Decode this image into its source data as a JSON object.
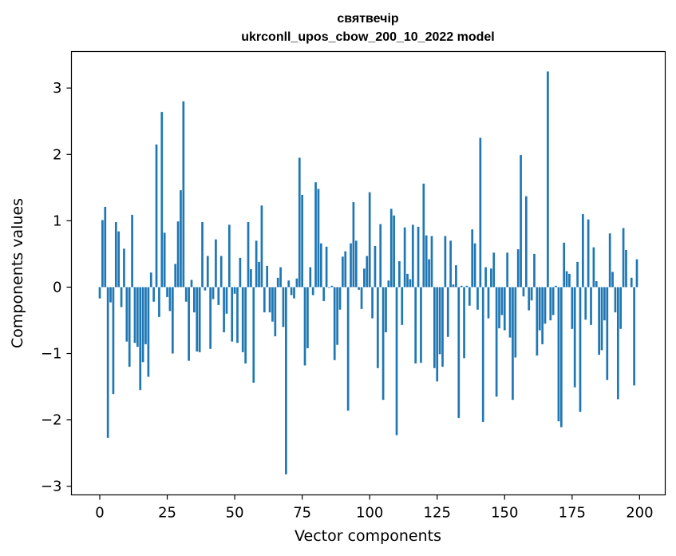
{
  "chart_data": {
    "type": "bar",
    "title": "святвечір",
    "subtitle": "ukrconll_upos_cbow_200_10_2022 model",
    "xlabel": "Vector components",
    "ylabel": "Components values",
    "xlim": [
      -10.5,
      209.5
    ],
    "ylim": [
      -3.13,
      3.55
    ],
    "xticks": [
      0,
      25,
      50,
      75,
      100,
      125,
      150,
      175,
      200
    ],
    "yticks": [
      -3,
      -2,
      -1,
      0,
      1,
      2,
      3
    ],
    "xtick_labels": [
      "0",
      "25",
      "50",
      "75",
      "100",
      "125",
      "150",
      "175",
      "200"
    ],
    "ytick_labels": [
      "−3",
      "−2",
      "−1",
      "0",
      "1",
      "2",
      "3"
    ],
    "grid": false,
    "color": "#1f77b4",
    "values": [
      -0.17,
      1.01,
      1.21,
      -2.27,
      -0.23,
      -1.61,
      0.98,
      0.84,
      -0.3,
      0.58,
      -0.82,
      -1.2,
      1.09,
      -0.84,
      -0.9,
      -1.55,
      -1.13,
      -0.86,
      -1.35,
      0.22,
      -0.22,
      2.15,
      -0.45,
      2.64,
      0.82,
      -0.15,
      -0.36,
      -1.0,
      0.35,
      0.99,
      1.46,
      2.8,
      -0.22,
      -1.11,
      0.11,
      -0.38,
      -0.97,
      -0.98,
      0.98,
      -0.05,
      0.47,
      -0.93,
      -0.18,
      0.72,
      -0.27,
      0.47,
      -0.68,
      -0.4,
      0.94,
      -0.82,
      -0.1,
      -0.84,
      0.44,
      -0.98,
      -1.15,
      0.98,
      0.27,
      -1.44,
      0.7,
      0.38,
      1.23,
      -0.38,
      0.32,
      -0.38,
      -0.52,
      -0.74,
      0.14,
      0.3,
      -0.6,
      -2.82,
      0.1,
      -0.12,
      -0.17,
      0.13,
      1.95,
      1.39,
      -1.18,
      -0.92,
      0.3,
      -0.12,
      1.58,
      1.48,
      0.66,
      -0.21,
      0.61,
      -0.01,
      0.02,
      -1.1,
      -0.87,
      -0.34,
      0.46,
      0.54,
      -1.86,
      0.66,
      1.28,
      0.7,
      -0.04,
      -0.33,
      0.28,
      0.47,
      1.43,
      -0.47,
      0.62,
      -1.22,
      0.95,
      -1.7,
      -0.68,
      0.1,
      1.18,
      1.08,
      -2.23,
      0.39,
      -0.57,
      0.9,
      0.2,
      0.12,
      0.94,
      -1.15,
      0.91,
      -1.14,
      1.56,
      0.78,
      0.42,
      0.77,
      -1.22,
      -1.42,
      -1.01,
      -1.2,
      0.77,
      -0.75,
      0.7,
      0.04,
      0.33,
      -1.97,
      0.02,
      -1.07,
      0.02,
      -0.28,
      0.87,
      0.66,
      -0.34,
      2.25,
      -2.03,
      0.3,
      -0.47,
      0.28,
      0.52,
      -1.65,
      -0.62,
      -0.42,
      -0.65,
      0.52,
      -0.76,
      -1.7,
      -1.06,
      0.57,
      1.99,
      -0.14,
      1.37,
      -0.35,
      -0.2,
      0.5,
      -1.03,
      -0.65,
      -0.86,
      -0.55,
      3.25,
      -0.5,
      -0.42,
      0.02,
      -2.02,
      -2.11,
      0.67,
      0.24,
      0.2,
      -0.63,
      -1.51,
      0.38,
      -1.88,
      1.1,
      -0.49,
      1.02,
      -0.57,
      0.6,
      0.09,
      -1.02,
      -0.95,
      -0.5,
      -1.4,
      0.81,
      0.23,
      -0.38,
      -1.69,
      -0.63,
      0.89,
      0.56,
      0.0,
      0.14,
      -1.48,
      0.42
    ]
  }
}
